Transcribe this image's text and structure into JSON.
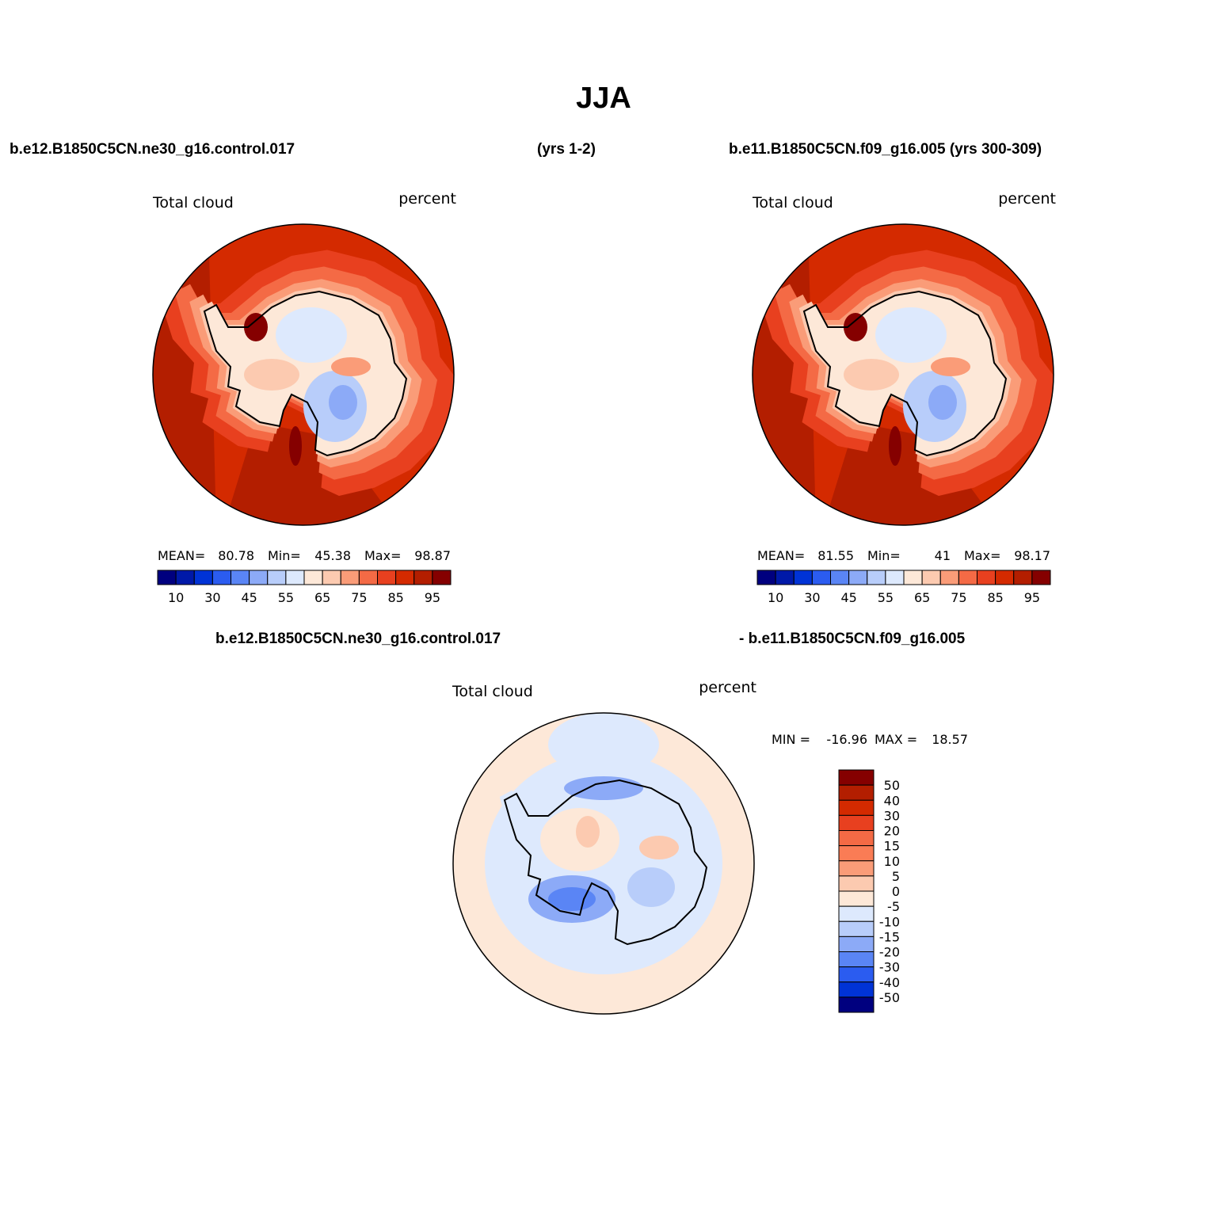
{
  "title": "JJA",
  "header": {
    "left": "b.e12.B1850C5CN.ne30_g16.control.017",
    "middle": "(yrs 1-2)",
    "right": "b.e11.B1850C5CN.f09_g16.005 (yrs 300-309)"
  },
  "panels": [
    {
      "variable": "Total cloud",
      "units": "percent",
      "mean_label": "MEAN=",
      "mean": 80.78,
      "min_label": "Min=",
      "min": 45.38,
      "max_label": "Max=",
      "max": 98.87
    },
    {
      "variable": "Total cloud",
      "units": "percent",
      "mean_label": "MEAN=",
      "mean": 81.55,
      "min_label": "Min=",
      "min": 41.0,
      "max_label": "Max=",
      "max": 98.17
    }
  ],
  "colorbar": {
    "labels": [
      10,
      30,
      45,
      55,
      65,
      75,
      85,
      95
    ],
    "colors": [
      "#00007f",
      "#0019a8",
      "#0033d6",
      "#2b5cf0",
      "#5a85f5",
      "#8caaf7",
      "#b8cdfa",
      "#dde9fd",
      "#fde8d8",
      "#fccab0",
      "#fa9c78",
      "#f46a45",
      "#e8401f",
      "#d42a00",
      "#b31e00",
      "#850000"
    ]
  },
  "difference": {
    "header_left": "b.e12.B1850C5CN.ne30_g16.control.017",
    "header_right": "- b.e11.B1850C5CN.f09_g16.005",
    "variable": "Total cloud",
    "units": "percent",
    "min_label": "MIN =",
    "min": -16.96,
    "max_label": "MAX =",
    "max": 18.57,
    "colorbar": {
      "labels": [
        50,
        40,
        30,
        20,
        15,
        10,
        5,
        0,
        -5,
        -10,
        -15,
        -20,
        -30,
        -40,
        -50
      ],
      "colors": [
        "#850000",
        "#b31e00",
        "#d42a00",
        "#e8401f",
        "#f46a45",
        "#fa7c55",
        "#fa9c78",
        "#fccab0",
        "#fde8d8",
        "#dde9fd",
        "#b8cdfa",
        "#8caaf7",
        "#5a85f5",
        "#2b5cf0",
        "#0033d6",
        "#00007f"
      ]
    }
  }
}
